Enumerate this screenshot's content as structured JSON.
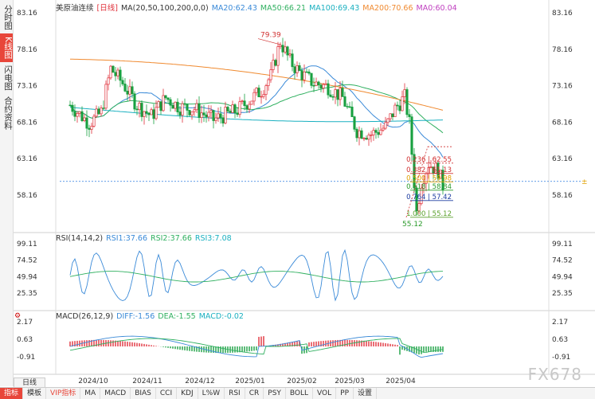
{
  "left_tabs": [
    {
      "label": "分时图",
      "active": false
    },
    {
      "label": "K线图",
      "active": true
    },
    {
      "label": "闪电图",
      "active": false
    },
    {
      "label": "合约资料",
      "active": false
    }
  ],
  "price_pane": {
    "legend": {
      "symbol": "美原油连续",
      "period": "[日线]",
      "ma_name": "MA(20,50,100,200,0,0)",
      "ma20": "MA20:62.43",
      "ma50": "MA50:66.21",
      "ma100": "MA100:69.43",
      "ma200": "MA200:70.66",
      "ma0": "MA0:60.04"
    },
    "y_ticks": [
      "83.16",
      "78.16",
      "73.16",
      "68.16",
      "63.16",
      "58.16"
    ],
    "high_label": "79.39",
    "low_label": "55.12",
    "fib_levels": [
      {
        "ratio": "0.236",
        "price": "62.55",
        "color": "#d03030"
      },
      {
        "ratio": "0.382",
        "price": "61.13",
        "color": "#d03030"
      },
      {
        "ratio": "0.500",
        "price": "59.98",
        "color": "#e0a000"
      },
      {
        "ratio": "0.618",
        "price": "58.84",
        "color": "#2a9a2a"
      },
      {
        "ratio": "0.764",
        "price": "57.42",
        "color": "#1a3aa0"
      },
      {
        "ratio": "1.000",
        "price": "55.12",
        "color": "#5aa02a"
      }
    ],
    "current_price_marker": "±"
  },
  "rsi_pane": {
    "legend": {
      "name": "RSI(14,14,2)",
      "rsi1": "RSI1:37.66",
      "rsi2": "RSI2:37.66",
      "rsi3": "RSI3:7.08"
    },
    "y_ticks": [
      "99.11",
      "74.52",
      "49.94",
      "25.35"
    ]
  },
  "macd_pane": {
    "legend": {
      "name": "MACD(26,12,9)",
      "diff": "DIFF:-1.56",
      "dea": "DEA:-1.55",
      "macd": "MACD:-0.02"
    },
    "y_ticks": [
      "2.17",
      "0.63",
      "-0.91"
    ]
  },
  "x_axis_labels": [
    "2024/10",
    "2024/11",
    "2024/12",
    "2025/01",
    "2025/02",
    "2025/03",
    "2025/04"
  ],
  "period_tab": "日线",
  "bottom_tabs": [
    {
      "label": "指标",
      "style": "first"
    },
    {
      "label": "模板",
      "style": ""
    },
    {
      "label": "VIP指标",
      "style": "active"
    },
    {
      "label": "MA",
      "style": ""
    },
    {
      "label": "MACD",
      "style": ""
    },
    {
      "label": "BIAS",
      "style": ""
    },
    {
      "label": "CCI",
      "style": ""
    },
    {
      "label": "KDJ",
      "style": ""
    },
    {
      "label": "L%W",
      "style": ""
    },
    {
      "label": "RSI",
      "style": ""
    },
    {
      "label": "CR",
      "style": ""
    },
    {
      "label": "PSY",
      "style": ""
    },
    {
      "label": "BOLL",
      "style": ""
    },
    {
      "label": "VOL",
      "style": ""
    },
    {
      "label": "PP",
      "style": ""
    },
    {
      "label": "设置",
      "style": ""
    }
  ],
  "watermark": "FX678",
  "colors": {
    "up": "#e0303a",
    "down": "#18a040",
    "ma20": "#3a8ad8",
    "ma50": "#30b060",
    "ma100": "#1ab0c0",
    "ma200": "#f08a30",
    "ma0": "#c040c0",
    "current_line": "#2a7ae0"
  }
}
